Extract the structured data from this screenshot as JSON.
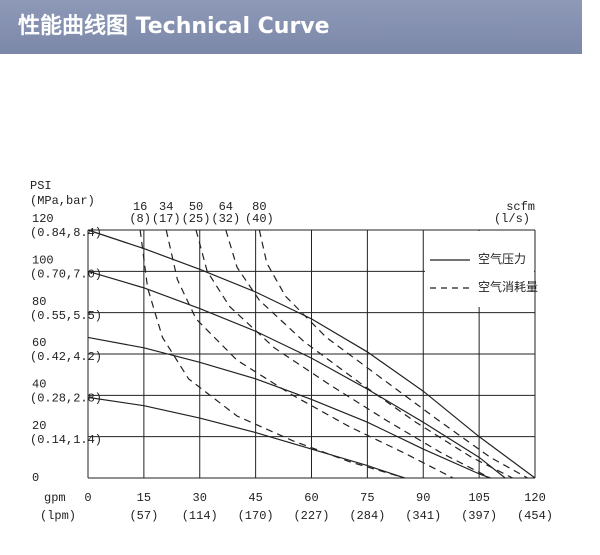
{
  "header": {
    "title": "性能曲线图 Technical Curve"
  },
  "chart_data": {
    "type": "line",
    "y_label": "PSI",
    "y_label_sub": "(MPa,bar)",
    "x_label": "gpm",
    "x_label_sub": "(lpm)",
    "y2_label": "scfm",
    "y2_label_sub": "(l/s)",
    "xlim": [
      0,
      120
    ],
    "ylim": [
      0,
      120
    ],
    "xticks": [
      0,
      15,
      30,
      45,
      60,
      75,
      90,
      105,
      120
    ],
    "xtick_sublabels": [
      null,
      "(57)",
      "(114)",
      "(170)",
      "(227)",
      "(284)",
      "(341)",
      "(397)",
      "(454)"
    ],
    "yticks": [
      0,
      20,
      40,
      60,
      80,
      100,
      120
    ],
    "ytick_sublabels": [
      null,
      "(0.14,1.4)",
      "(0.28,2.8)",
      "(0.42,4.2)",
      "(0.55,5.5)",
      "(0.70,7.0)",
      "(0.84,8.4)"
    ],
    "grid": true,
    "color": "#222222",
    "legend": [
      {
        "label": "空气压力",
        "dash": false
      },
      {
        "label": "空气消耗量",
        "dash": true
      }
    ],
    "series": [
      {
        "dash": false,
        "x": [
          0,
          15,
          30,
          45,
          60,
          75,
          90,
          105,
          120
        ],
        "values": [
          120,
          111,
          101,
          90,
          77,
          61,
          42,
          20,
          0
        ]
      },
      {
        "dash": false,
        "x": [
          0,
          15,
          30,
          45,
          60,
          75,
          90,
          105,
          112
        ],
        "values": [
          100,
          92,
          82,
          71,
          58,
          43,
          27,
          10,
          0
        ]
      },
      {
        "dash": false,
        "x": [
          0,
          15,
          30,
          45,
          60,
          75,
          90,
          105,
          108
        ],
        "values": [
          68,
          63,
          56,
          48,
          38,
          27,
          14,
          2,
          0
        ]
      },
      {
        "dash": false,
        "x": [
          0,
          15,
          30,
          45,
          60,
          75,
          85
        ],
        "values": [
          39,
          35,
          29,
          22,
          14,
          6,
          0
        ]
      },
      {
        "dash": true,
        "name": "16",
        "sub": "(8)",
        "x": [
          14,
          16,
          20,
          27,
          40,
          55,
          70,
          85
        ],
        "values": [
          120,
          92,
          68,
          48,
          30,
          18,
          8,
          0
        ]
      },
      {
        "dash": true,
        "name": "34",
        "sub": "(17)",
        "x": [
          21,
          24,
          29,
          40,
          55,
          70,
          85,
          98
        ],
        "values": [
          120,
          96,
          77,
          57,
          40,
          25,
          12,
          0
        ]
      },
      {
        "dash": true,
        "name": "50",
        "sub": "(25)",
        "x": [
          29,
          32,
          38,
          50,
          65,
          80,
          95,
          108
        ],
        "values": [
          120,
          100,
          83,
          63,
          45,
          28,
          12,
          0
        ]
      },
      {
        "dash": true,
        "name": "64",
        "sub": "(32)",
        "x": [
          37,
          40,
          46,
          58,
          73,
          88,
          103,
          114
        ],
        "values": [
          120,
          102,
          86,
          66,
          46,
          27,
          10,
          0
        ]
      },
      {
        "dash": true,
        "name": "80",
        "sub": "(40)",
        "x": [
          46,
          48,
          53,
          64,
          79,
          94,
          108,
          118
        ],
        "values": [
          120,
          104,
          88,
          68,
          48,
          28,
          10,
          0
        ]
      }
    ]
  }
}
